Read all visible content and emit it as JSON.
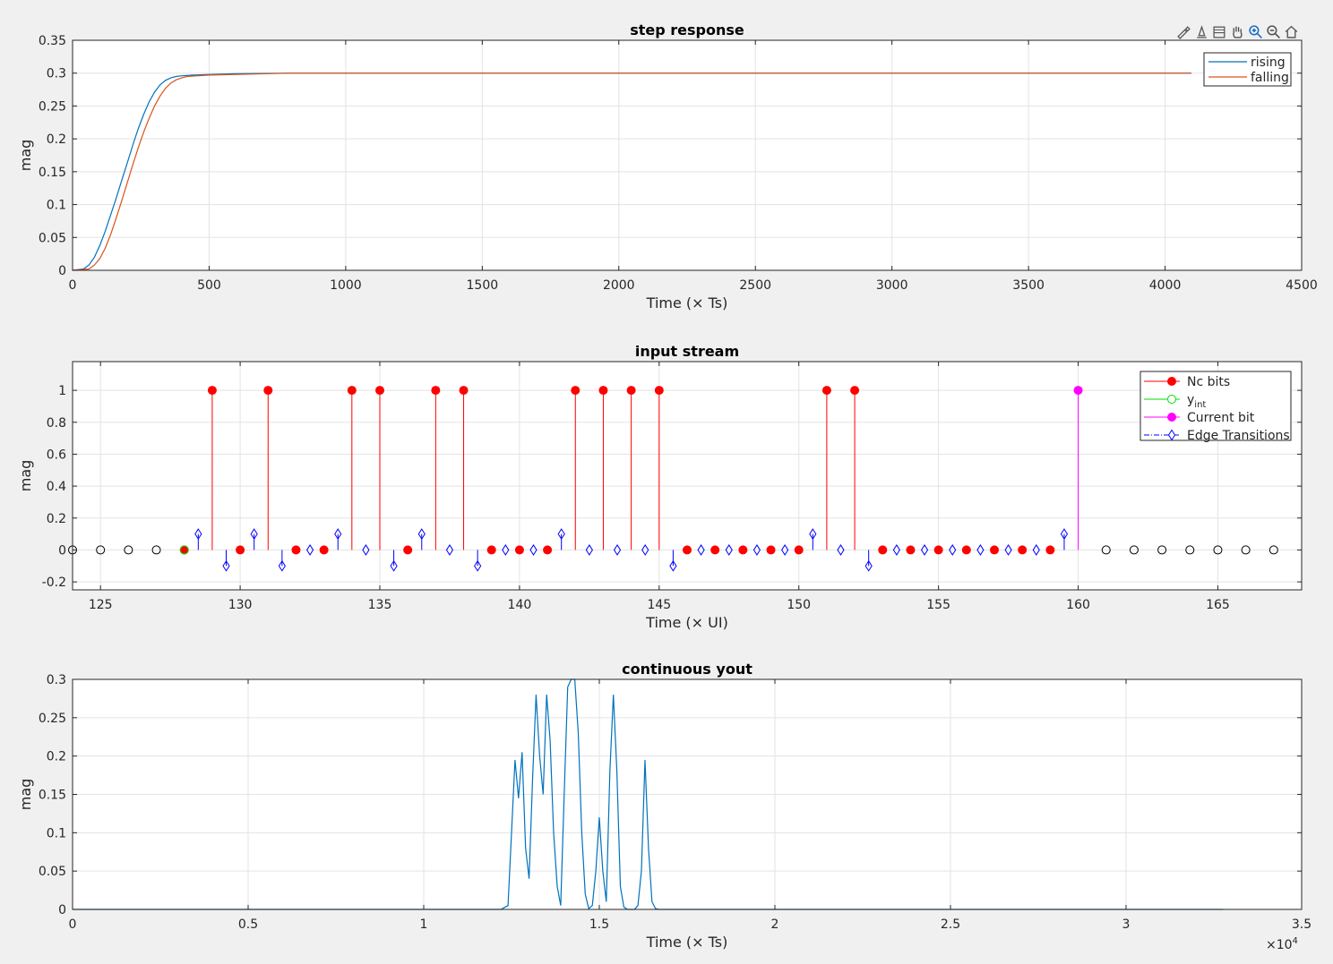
{
  "toolbar": {
    "icons": [
      "brush-icon",
      "data-tips-icon",
      "rotate-icon",
      "pan-hand-icon",
      "zoom-in-icon",
      "zoom-out-icon",
      "home-icon"
    ]
  },
  "chart_data": [
    {
      "type": "line",
      "title": "step response",
      "xlabel": "Time (× Ts)",
      "ylabel": "mag",
      "xlim": [
        0,
        4500
      ],
      "ylim": [
        0,
        0.35
      ],
      "xticks": [
        0,
        500,
        1000,
        1500,
        2000,
        2500,
        3000,
        3500,
        4000,
        4500
      ],
      "yticks": [
        0,
        0.05,
        0.1,
        0.15,
        0.2,
        0.25,
        0.3,
        0.35
      ],
      "ytick_labels": [
        "0",
        "0.05",
        "0.1",
        "0.15",
        "0.2",
        "0.25",
        "0.3",
        "0.35"
      ],
      "grid": true,
      "legend_position": "top-right",
      "series": [
        {
          "name": "rising",
          "color": "#0072bd",
          "x": [
            0,
            40,
            60,
            80,
            100,
            120,
            140,
            160,
            180,
            200,
            220,
            240,
            260,
            280,
            300,
            320,
            340,
            360,
            380,
            400,
            440,
            500,
            600,
            800,
            1000,
            2000,
            3000,
            4096
          ],
          "y": [
            0,
            0.002,
            0.008,
            0.02,
            0.038,
            0.06,
            0.085,
            0.11,
            0.137,
            0.163,
            0.19,
            0.215,
            0.237,
            0.256,
            0.271,
            0.282,
            0.289,
            0.293,
            0.295,
            0.296,
            0.297,
            0.298,
            0.299,
            0.3,
            0.3,
            0.3,
            0.3,
            0.3
          ]
        },
        {
          "name": "falling",
          "color": "#d95319",
          "x": [
            0,
            60,
            80,
            100,
            120,
            140,
            160,
            180,
            200,
            220,
            240,
            260,
            280,
            300,
            320,
            340,
            360,
            380,
            400,
            420,
            460,
            500,
            600,
            800,
            1000,
            2000,
            3000,
            4096
          ],
          "y": [
            0,
            0.002,
            0.008,
            0.018,
            0.034,
            0.055,
            0.08,
            0.106,
            0.133,
            0.16,
            0.186,
            0.21,
            0.231,
            0.25,
            0.265,
            0.277,
            0.285,
            0.29,
            0.293,
            0.295,
            0.296,
            0.297,
            0.298,
            0.3,
            0.3,
            0.3,
            0.3,
            0.3
          ]
        }
      ]
    },
    {
      "type": "stem",
      "title": "input stream",
      "xlabel": "Time (× UI)",
      "ylabel": "mag",
      "xlim": [
        124,
        168
      ],
      "ylim": [
        -0.25,
        1.18
      ],
      "xticks": [
        125,
        130,
        135,
        140,
        145,
        150,
        155,
        160,
        165
      ],
      "yticks": [
        -0.2,
        0,
        0.2,
        0.4,
        0.6,
        0.8,
        1
      ],
      "ytick_labels": [
        "-0.2",
        "0",
        "0.2",
        "0.4",
        "0.6",
        "0.8",
        "1"
      ],
      "grid": true,
      "legend_position": "top-right",
      "legend": [
        {
          "label": "Nc bits",
          "color": "#ff0000",
          "marker": "filled-circle"
        },
        {
          "label": "y",
          "sub": "int",
          "color": "#00dd00",
          "marker": "open-circle"
        },
        {
          "label": "Current bit",
          "color": "#ff00ff",
          "marker": "filled-circle"
        },
        {
          "label": "Edge Transitions",
          "color": "#0000ff",
          "marker": "diamond"
        }
      ],
      "future_bits": {
        "color": "#000000",
        "x": [
          124,
          125,
          126,
          127,
          161,
          162,
          163,
          164,
          165,
          166,
          167
        ],
        "y": [
          0,
          0,
          0,
          0,
          0,
          0,
          0,
          0,
          0,
          0,
          0
        ]
      },
      "yint": {
        "color": "#00dd00",
        "x": [
          128
        ],
        "y": [
          0
        ]
      },
      "nc_bits": {
        "color": "#ff0000",
        "x": [
          128,
          129,
          130,
          131,
          132,
          133,
          134,
          135,
          136,
          137,
          138,
          139,
          140,
          141,
          142,
          143,
          144,
          145,
          146,
          147,
          148,
          149,
          150,
          151,
          152,
          153,
          154,
          155,
          156,
          157,
          158,
          159
        ],
        "y": [
          0,
          1,
          0,
          1,
          0,
          0,
          1,
          1,
          0,
          1,
          1,
          0,
          0,
          0,
          1,
          1,
          1,
          1,
          0,
          0,
          0,
          0,
          0,
          1,
          1,
          0,
          0,
          0,
          0,
          0,
          0,
          0
        ]
      },
      "current_bit": {
        "color": "#ff00ff",
        "x": [
          160
        ],
        "y": [
          1
        ]
      },
      "edges": {
        "color": "#0000ff",
        "x": [
          128.5,
          129.5,
          130.5,
          131.5,
          132.5,
          133.5,
          134.5,
          135.5,
          136.5,
          137.5,
          138.5,
          139.5,
          140.5,
          141.5,
          142.5,
          143.5,
          144.5,
          145.5,
          146.5,
          147.5,
          148.5,
          149.5,
          150.5,
          151.5,
          152.5,
          153.5,
          154.5,
          155.5,
          156.5,
          157.5,
          158.5,
          159.5
        ],
        "y": [
          0.1,
          -0.1,
          0.1,
          -0.1,
          0,
          0.1,
          0,
          -0.1,
          0.1,
          0,
          -0.1,
          0,
          0,
          0.1,
          0,
          0,
          0,
          -0.1,
          0,
          0,
          0,
          0,
          0.1,
          0,
          -0.1,
          0,
          0,
          0,
          0,
          0,
          0,
          0.1
        ]
      }
    },
    {
      "type": "line",
      "title": "continuous yout",
      "xlabel": "Time (× Ts)",
      "ylabel": "mag",
      "xlim": [
        0,
        35000
      ],
      "ylim": [
        0,
        0.3
      ],
      "xticks": [
        0,
        5000,
        10000,
        15000,
        20000,
        25000,
        30000,
        35000
      ],
      "xtick_labels": [
        "0",
        "0.5",
        "1",
        "1.5",
        "2",
        "2.5",
        "3",
        "3.5"
      ],
      "x_exponent": "×10",
      "x_exponent_power": "4",
      "yticks": [
        0,
        0.05,
        0.1,
        0.15,
        0.2,
        0.25,
        0.3
      ],
      "ytick_labels": [
        "0",
        "0.05",
        "0.1",
        "0.15",
        "0.2",
        "0.25",
        "0.3"
      ],
      "grid": true,
      "series": [
        {
          "color": "#0072bd",
          "x": [
            0,
            12200,
            12400,
            12500,
            12600,
            12700,
            12800,
            12900,
            13000,
            13100,
            13200,
            13300,
            13400,
            13500,
            13600,
            13700,
            13800,
            13900,
            14000,
            14100,
            14200,
            14300,
            14400,
            14500,
            14600,
            14700,
            14800,
            14900,
            15000,
            15100,
            15200,
            15300,
            15400,
            15500,
            15600,
            15700,
            15800,
            15900,
            16000,
            16100,
            16200,
            16300,
            16400,
            16500,
            16600,
            16700,
            16800,
            17000,
            32768
          ],
          "y": [
            0,
            0,
            0.005,
            0.1,
            0.195,
            0.145,
            0.205,
            0.08,
            0.04,
            0.17,
            0.28,
            0.2,
            0.15,
            0.28,
            0.22,
            0.1,
            0.03,
            0.005,
            0.15,
            0.29,
            0.3,
            0.3,
            0.23,
            0.1,
            0.02,
            0.001,
            0.005,
            0.05,
            0.12,
            0.05,
            0.01,
            0.18,
            0.28,
            0.18,
            0.03,
            0.003,
            0,
            0,
            0,
            0.005,
            0.05,
            0.195,
            0.08,
            0.01,
            0.001,
            0,
            0,
            0,
            0
          ]
        }
      ]
    }
  ]
}
